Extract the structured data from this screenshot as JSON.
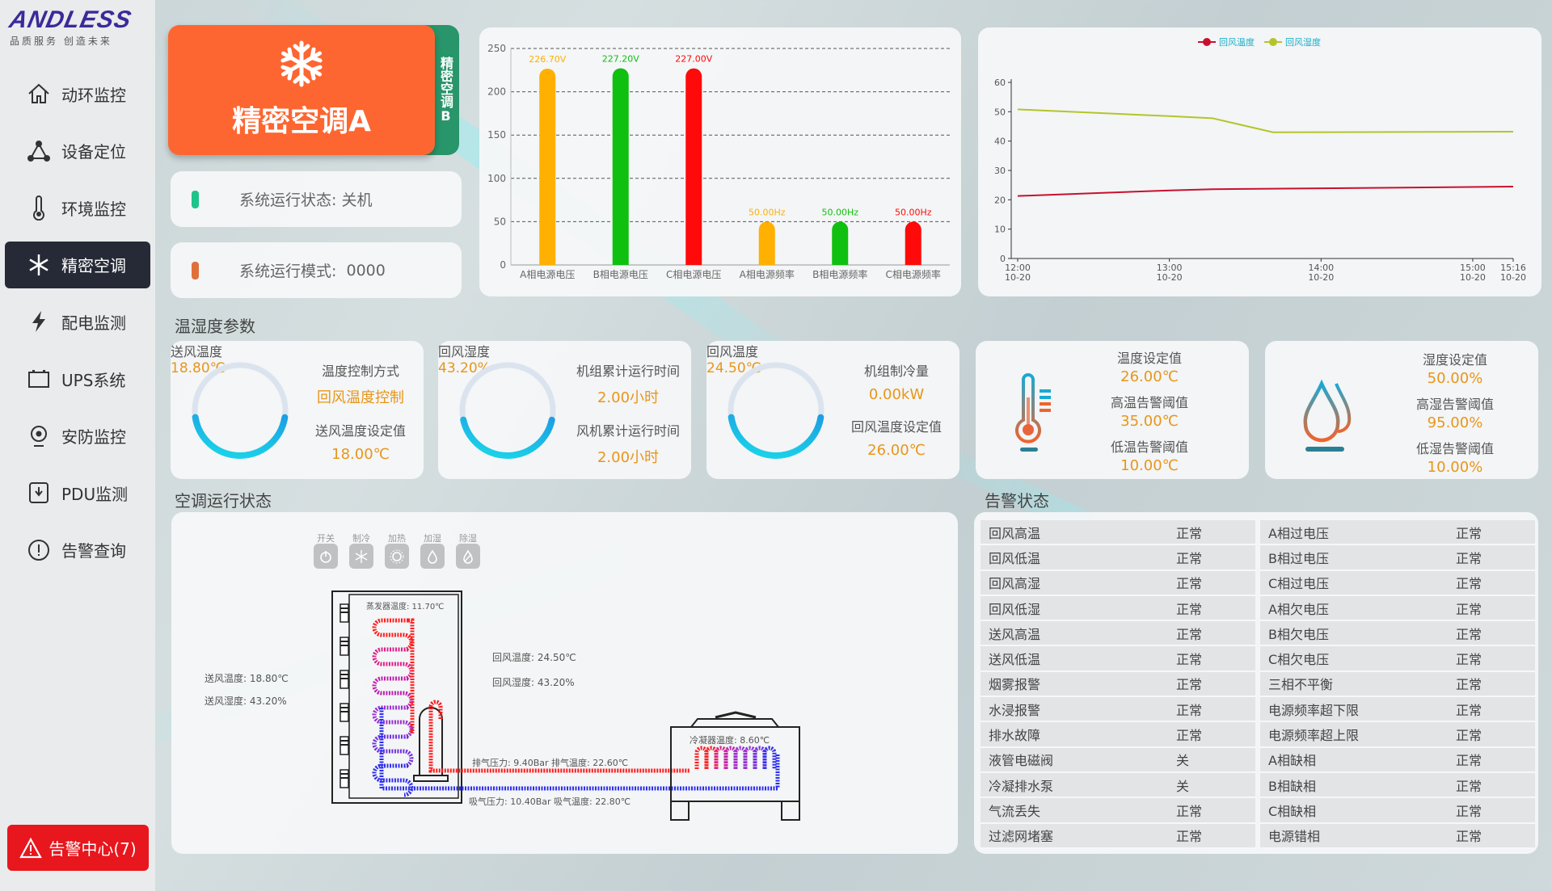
{
  "logo": {
    "brand": "ANDLESS",
    "slogan": "品质服务  创造未来"
  },
  "sidebar": {
    "items": [
      {
        "label": "动环监控",
        "icon": "home-icon"
      },
      {
        "label": "设备定位",
        "icon": "network-icon"
      },
      {
        "label": "环境监控",
        "icon": "thermometer-icon"
      },
      {
        "label": "精密空调",
        "icon": "snowflake-icon",
        "active": true
      },
      {
        "label": "配电监测",
        "icon": "lightning-icon"
      },
      {
        "label": "UPS系统",
        "icon": "battery-icon"
      },
      {
        "label": "安防监控",
        "icon": "camera-icon"
      },
      {
        "label": "PDU监测",
        "icon": "pdu-icon"
      },
      {
        "label": "告警查询",
        "icon": "alert-circle-icon"
      }
    ],
    "alarm_center": "告警中心(7)"
  },
  "units": {
    "a": "精密空调A",
    "b": "精密空调B"
  },
  "status": {
    "run_state_label": "系统运行状态:",
    "run_state": "关机",
    "run_mode_label": "系统运行模式:",
    "run_mode": "0000",
    "colors": {
      "state": "#1ec48a",
      "mode": "#e0703a"
    }
  },
  "chart_data": [
    {
      "type": "bar",
      "categories": [
        "A相电源电压",
        "B相电源电压",
        "C相电源电压",
        "A相电源频率",
        "B相电源频率",
        "C相电源频率"
      ],
      "values": [
        226.7,
        227.2,
        227.0,
        50.0,
        50.0,
        50.0
      ],
      "labels": [
        "226.70V",
        "227.20V",
        "227.00V",
        "50.00Hz",
        "50.00Hz",
        "50.00Hz"
      ],
      "colors": [
        "#ffb000",
        "#10c010",
        "#ff0a0a",
        "#ffb000",
        "#10c010",
        "#ff0a0a"
      ],
      "ylim": [
        0,
        250
      ],
      "yticks": [
        0,
        50,
        100,
        150,
        200,
        250
      ],
      "grid": true
    },
    {
      "type": "line",
      "legend": {
        "position": "top-center"
      },
      "ylim": [
        0,
        60
      ],
      "yticks": [
        0,
        10,
        20,
        30,
        40,
        50,
        60
      ],
      "xticks": [
        {
          "time": "12:00",
          "date": "10-20"
        },
        {
          "time": "13:00",
          "date": "10-20"
        },
        {
          "time": "14:00",
          "date": "10-20"
        },
        {
          "time": "15:00",
          "date": "10-20"
        },
        {
          "time": "15:16",
          "date": "10-20"
        }
      ],
      "series": [
        {
          "name": "回风温度",
          "color": "#c8102e",
          "points": [
            [
              "12:00",
              21.3
            ],
            [
              "13:00",
              23.2
            ],
            [
              "13:17",
              23.6
            ],
            [
              "14:00",
              23.9
            ],
            [
              "15:16",
              24.5
            ]
          ]
        },
        {
          "name": "回风湿度",
          "color": "#b5c42a",
          "points": [
            [
              "12:00",
              50.8
            ],
            [
              "13:00",
              48.5
            ],
            [
              "13:17",
              47.8
            ],
            [
              "13:41",
              43.0
            ],
            [
              "15:16",
              43.2
            ]
          ]
        }
      ]
    }
  ],
  "params": {
    "title": "温湿度参数",
    "g1": {
      "label": "送风温度",
      "value": "18.80℃",
      "fill": 0.45,
      "k1": "温度控制方式",
      "v1": "回风温度控制",
      "k2": "送风温度设定值",
      "v2": "18.00℃"
    },
    "g2": {
      "label": "回风湿度",
      "value": "43.20%",
      "fill": 0.432,
      "k1": "机组累计运行时间",
      "v1": "2.00小时",
      "k2": "风机累计运行时间",
      "v2": "2.00小时"
    },
    "g3": {
      "label": "回风温度",
      "value": "24.50℃",
      "fill": 0.45,
      "k1": "机组制冷量",
      "v1": "0.00kW",
      "k2": "回风温度设定值",
      "v2": "26.00℃"
    },
    "temp": {
      "k1": "温度设定值",
      "v1": "26.00℃",
      "k2": "高温告警阈值",
      "v2": "35.00℃",
      "k3": "低温告警阈值",
      "v3": "10.00℃"
    },
    "hum": {
      "k1": "湿度设定值",
      "v1": "50.00%",
      "k2": "高湿告警阈值",
      "v2": "95.00%",
      "k3": "低湿告警阈值",
      "v3": "10.00%"
    }
  },
  "run": {
    "title": "空调运行状态",
    "buttons": [
      {
        "label": "开关",
        "icon": "power-icon"
      },
      {
        "label": "制冷",
        "icon": "snowflake-icon"
      },
      {
        "label": "加热",
        "icon": "sun-icon"
      },
      {
        "label": "加湿",
        "icon": "drop-icon"
      },
      {
        "label": "除湿",
        "icon": "drop-slash-icon"
      }
    ],
    "supply_temp": "送风温度:  18.80℃",
    "supply_hum": "送风湿度:  43.20%",
    "return_temp": "回风温度:  24.50℃",
    "return_hum": "回风湿度:  43.20%",
    "evap_temp": "蒸发器温度:   11.70℃",
    "cond_temp": "冷凝器温度:  8.60℃",
    "discharge": "排气压力:  9.40Bar   排气温度:  22.60℃",
    "suction": "吸气压力:  10.40Bar  吸气温度:  22.80℃"
  },
  "alarms": {
    "title": "告警状态",
    "left": [
      [
        "回风高温",
        "正常"
      ],
      [
        "回风低温",
        "正常"
      ],
      [
        "回风高湿",
        "正常"
      ],
      [
        "回风低湿",
        "正常"
      ],
      [
        "送风高温",
        "正常"
      ],
      [
        "送风低温",
        "正常"
      ],
      [
        "烟雾报警",
        "正常"
      ],
      [
        "水浸报警",
        "正常"
      ],
      [
        "排水故障",
        "正常"
      ],
      [
        "液管电磁阀",
        "关"
      ],
      [
        "冷凝排水泵",
        "关"
      ],
      [
        "气流丢失",
        "正常"
      ],
      [
        "过滤网堵塞",
        "正常"
      ]
    ],
    "right": [
      [
        "A相过电压",
        "正常"
      ],
      [
        "B相过电压",
        "正常"
      ],
      [
        "C相过电压",
        "正常"
      ],
      [
        "A相欠电压",
        "正常"
      ],
      [
        "B相欠电压",
        "正常"
      ],
      [
        "C相欠电压",
        "正常"
      ],
      [
        "三相不平衡",
        "正常"
      ],
      [
        "电源频率超下限",
        "正常"
      ],
      [
        "电源频率超上限",
        "正常"
      ],
      [
        "A相缺相",
        "正常"
      ],
      [
        "B相缺相",
        "正常"
      ],
      [
        "C相缺相",
        "正常"
      ],
      [
        "电源错相",
        "正常"
      ]
    ]
  }
}
